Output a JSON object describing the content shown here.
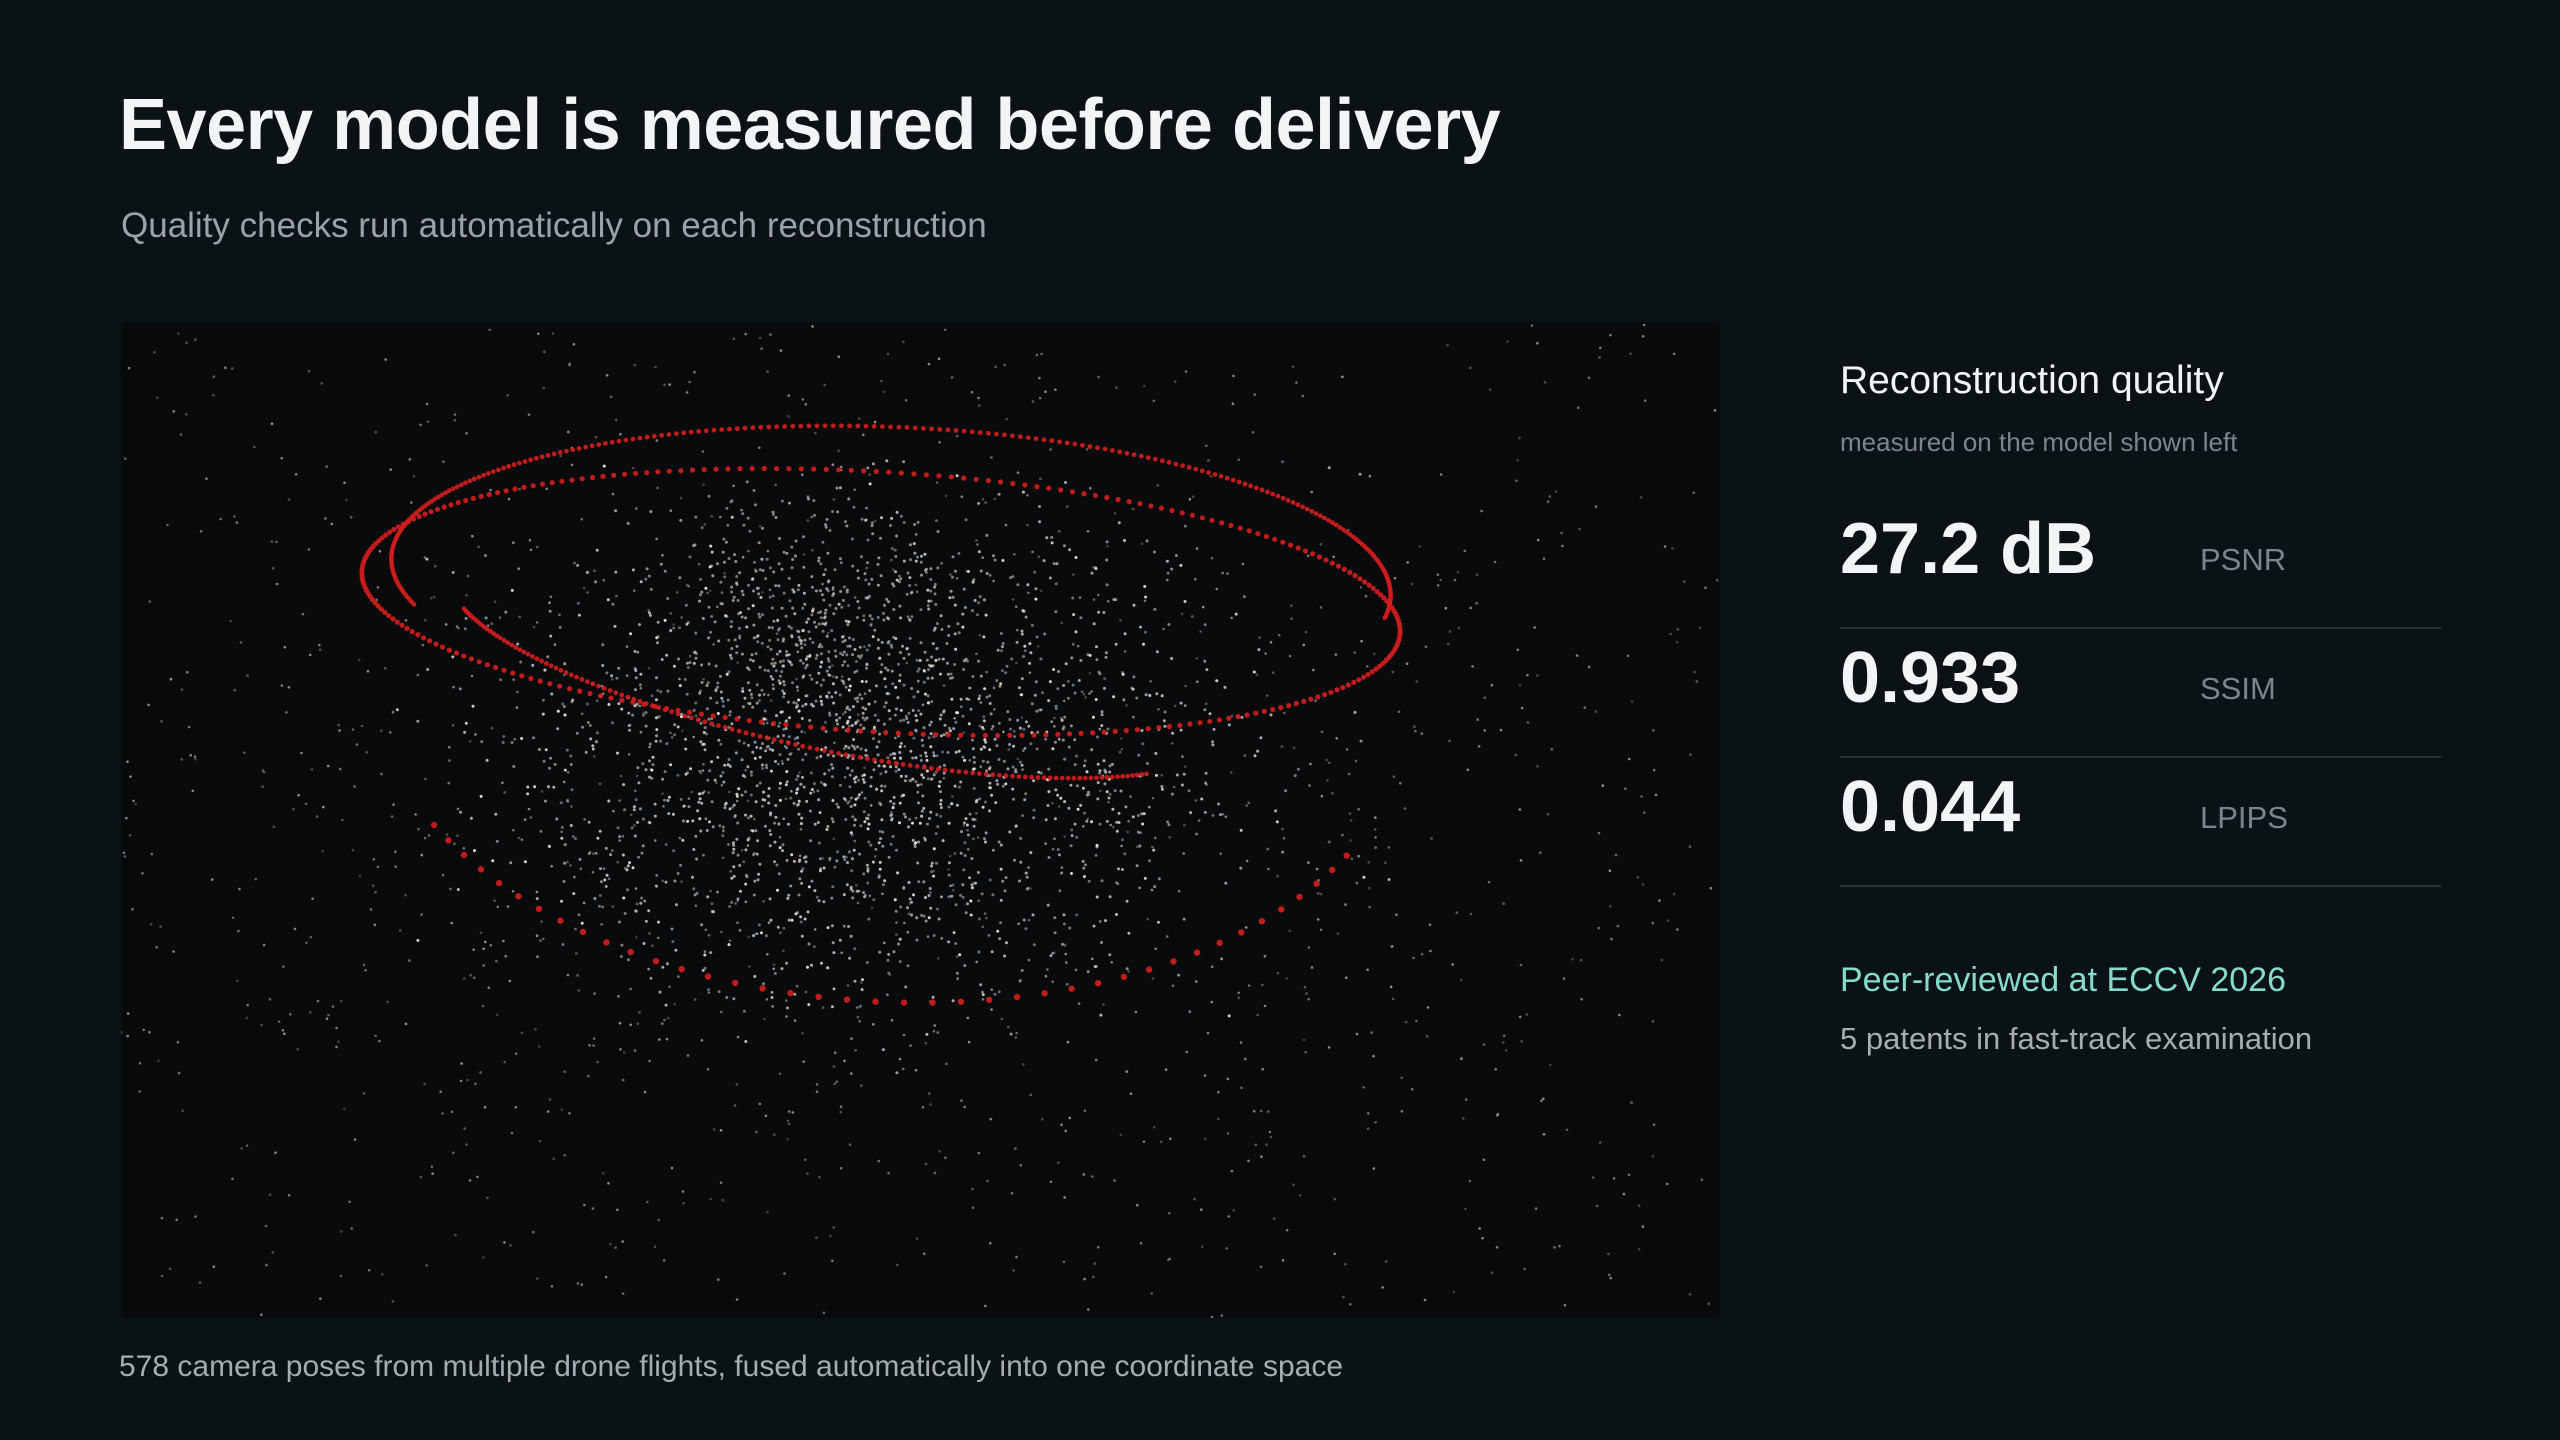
{
  "header": {
    "title": "Every model is measured before delivery",
    "subtitle": "Quality checks run automatically on each reconstruction"
  },
  "figure": {
    "caption": "578 camera poses from multiple drone flights, fused automatically into one coordinate space"
  },
  "panel": {
    "title": "Reconstruction quality",
    "subtitle": "measured on the model shown left",
    "metrics": [
      {
        "value": "27.2 dB",
        "label": "PSNR"
      },
      {
        "value": "0.933",
        "label": "SSIM"
      },
      {
        "value": "0.044",
        "label": "LPIPS"
      }
    ],
    "note": "Peer-reviewed at ECCV 2026",
    "detail": "5 patents in fast-track examination"
  }
}
